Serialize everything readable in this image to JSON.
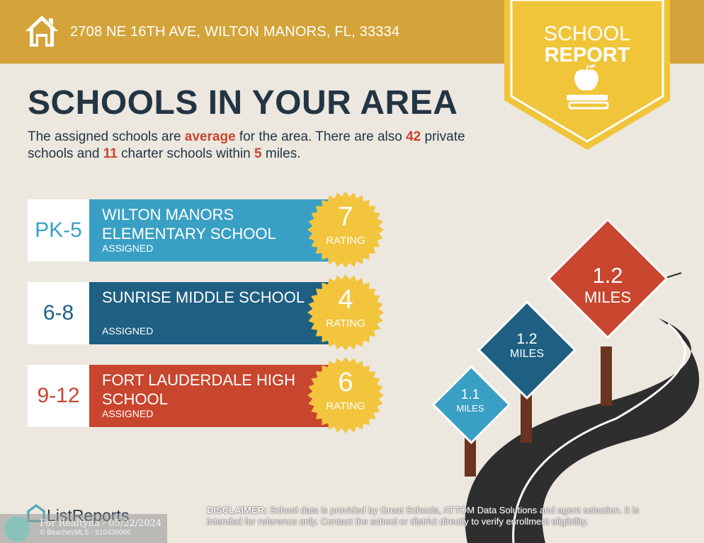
{
  "header": {
    "address": "2708 NE 16TH AVE, WILTON MANORS, FL, 33334",
    "badge_line1": "SCHOOL",
    "badge_line2": "REPORT"
  },
  "main": {
    "title": "SCHOOLS IN YOUR AREA",
    "intro": {
      "p1": "The assigned schools are ",
      "quality": "average",
      "p2": " for the area. There are also ",
      "private_count": "42",
      "p3": " private schools and ",
      "charter_count": "11",
      "p4": " charter schools within ",
      "radius": "5",
      "p5": " miles."
    }
  },
  "schools": [
    {
      "grades": "PK-5",
      "name": "WILTON MANORS ELEMENTARY SCHOOL",
      "status": "ASSIGNED",
      "rating": "7",
      "rating_label": "RATING",
      "color": "#3a9fc4",
      "grade_color": "#3a9fc4"
    },
    {
      "grades": "6-8",
      "name": "SUNRISE MIDDLE SCHOOL",
      "status": "ASSIGNED",
      "rating": "4",
      "rating_label": "RATING",
      "color": "#1e5f82",
      "grade_color": "#1e5f82"
    },
    {
      "grades": "9-12",
      "name": "FORT LAUDERDALE HIGH SCHOOL",
      "status": "ASSIGNED",
      "rating": "6",
      "rating_label": "RATING",
      "color": "#c8462e",
      "grade_color": "#c8462e"
    }
  ],
  "signs": [
    {
      "distance": "1.1",
      "unit": "MILES",
      "color": "#3a9fc4"
    },
    {
      "distance": "1.2",
      "unit": "MILES",
      "color": "#1e5f82"
    },
    {
      "distance": "1.2",
      "unit": "MILES",
      "color": "#c8462e"
    }
  ],
  "footer": {
    "brand": "ListReports",
    "watermark_line1": "For Realtyna - 05/22/2024",
    "watermark_line2": "© BeachesMLS - 510439066",
    "disclaimer_label": "DISCLAIMER:",
    "disclaimer_text": " School data is provided by Great Schools, ATTOM Data Solutions and agent selection. It is intended for reference only. Contact the school or district directly to verify enrollment eligibility."
  },
  "colors": {
    "gold": "#d4a43b",
    "badge": "#f1c53a",
    "navy": "#233544",
    "seal": "#f2c53d"
  },
  "icons": [
    "home-icon",
    "apple-icon",
    "books-icon",
    "listreports-logo-icon"
  ]
}
